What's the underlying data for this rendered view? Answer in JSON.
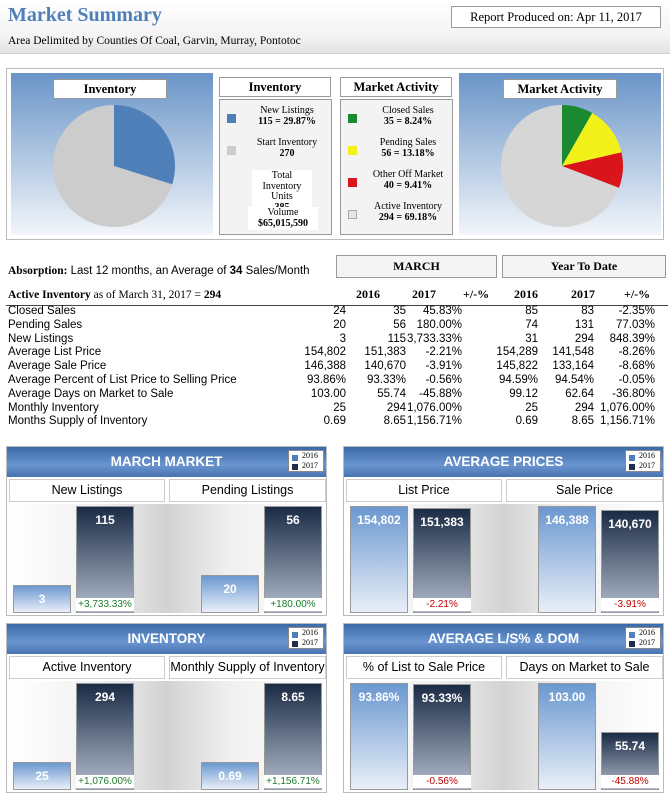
{
  "header": {
    "title": "Market Summary",
    "subtitle": "Area Delimited by Counties Of Coal, Garvin, Murray, Pontotoc",
    "report": "Report Produced on: Apr 11, 2017"
  },
  "summary": {
    "inventory_label": "Inventory",
    "activity_label": "Market Activity",
    "pie_activity_label": "Market Activity",
    "pie_inventory_label": "Inventory",
    "inventory_items": [
      {
        "line1": "New Listings",
        "line2": "115 = 29.87%",
        "color": "#4f7fb8",
        "value": 29.87
      },
      {
        "line1": "Start Inventory",
        "line2": "270",
        "color": "#cccccc",
        "value": 70.13
      },
      {
        "line1": "Total Inventory Units",
        "line2": "385"
      },
      {
        "line1": "Volume",
        "line2": "$65,015,590"
      }
    ],
    "activity_items": [
      {
        "line1": "Closed Sales",
        "line2": "35 = 8.24%",
        "color": "#1a8a30",
        "value": 8.24
      },
      {
        "line1": "Pending Sales",
        "line2": "56 = 13.18%",
        "color": "#f2f21a",
        "value": 13.18
      },
      {
        "line1": "Other Off Market",
        "line2": "40 = 9.41%",
        "color": "#d9141a",
        "value": 9.41
      },
      {
        "line1": "Active Inventory",
        "line2": "294 = 69.18%",
        "color": "#d6d6d6",
        "value": 69.18
      }
    ]
  },
  "absorption": {
    "label": "Absorption:",
    "text": "Last 12 months, an Average of",
    "value": "34",
    "unit": "Sales/Month"
  },
  "active_inventory": {
    "label": "Active Inventory",
    "text": "as of March 31, 2017 =",
    "value": "294"
  },
  "table": {
    "group_march": "MARCH",
    "group_ytd": "Year To Date",
    "cols": [
      "2016",
      "2017",
      "+/-%",
      "2016",
      "2017",
      "+/-%"
    ],
    "rows": [
      [
        "Closed Sales",
        "24",
        "35",
        "45.83%",
        "85",
        "83",
        "-2.35%"
      ],
      [
        "Pending Sales",
        "20",
        "56",
        "180.00%",
        "74",
        "131",
        "77.03%"
      ],
      [
        "New Listings",
        "3",
        "115",
        "3,733.33%",
        "31",
        "294",
        "848.39%"
      ],
      [
        "Average List Price",
        "154,802",
        "151,383",
        "-2.21%",
        "154,289",
        "141,548",
        "-8.26%"
      ],
      [
        "Average Sale Price",
        "146,388",
        "140,670",
        "-3.91%",
        "145,822",
        "133,164",
        "-8.68%"
      ],
      [
        "Average Percent of List Price to Selling Price",
        "93.86%",
        "93.33%",
        "-0.56%",
        "94.59%",
        "94.54%",
        "-0.05%"
      ],
      [
        "Average Days on Market to Sale",
        "103.00",
        "55.74",
        "-45.88%",
        "99.12",
        "62.64",
        "-36.80%"
      ],
      [
        "Monthly Inventory",
        "25",
        "294",
        "1,076.00%",
        "25",
        "294",
        "1,076.00%"
      ],
      [
        "Months Supply of Inventory",
        "0.69",
        "8.65",
        "1,156.71%",
        "0.69",
        "8.65",
        "1,156.71%"
      ]
    ]
  },
  "legend": {
    "a": "2016",
    "b": "2017",
    "c16": "#4f7fb8",
    "c17": "#1f2f4a"
  },
  "panels": [
    {
      "title": "MARCH MARKET",
      "sub": [
        "New Listings",
        "Pending Listings"
      ],
      "groups": [
        {
          "v16": "3",
          "v17": "115",
          "chg": "+3,733.33%",
          "n16": 3,
          "n17": 115,
          "pos": true
        },
        {
          "v16": "20",
          "v17": "56",
          "chg": "+180.00%",
          "n16": 20,
          "n17": 56,
          "pos": true
        }
      ]
    },
    {
      "title": "AVERAGE PRICES",
      "sub": [
        "List Price",
        "Sale Price"
      ],
      "groups": [
        {
          "v16": "154,802",
          "v17": "151,383",
          "chg": "-2.21%",
          "n16": 154802,
          "n17": 151383,
          "pos": false
        },
        {
          "v16": "146,388",
          "v17": "140,670",
          "chg": "-3.91%",
          "n16": 146388,
          "n17": 140670,
          "pos": false
        }
      ]
    },
    {
      "title": "INVENTORY",
      "sub": [
        "Active Inventory",
        "Monthly Supply of Inventory"
      ],
      "groups": [
        {
          "v16": "25",
          "v17": "294",
          "chg": "+1,076.00%",
          "n16": 25,
          "n17": 294,
          "pos": true
        },
        {
          "v16": "0.69",
          "v17": "8.65",
          "chg": "+1,156.71%",
          "n16": 0.69,
          "n17": 8.65,
          "pos": true
        }
      ]
    },
    {
      "title": "AVERAGE L/S% & DOM",
      "sub": [
        "% of List to Sale Price",
        "Days on Market to Sale"
      ],
      "groups": [
        {
          "v16": "93.86%",
          "v17": "93.33%",
          "chg": "-0.56%",
          "n16": 93.86,
          "n17": 93.33,
          "pos": false
        },
        {
          "v16": "103.00",
          "v17": "55.74",
          "chg": "-45.88%",
          "n16": 103,
          "n17": 55.74,
          "pos": false
        }
      ]
    }
  ]
}
